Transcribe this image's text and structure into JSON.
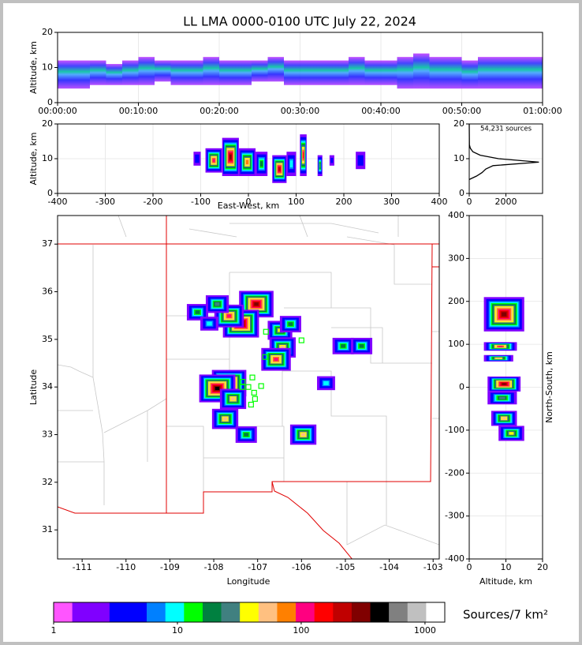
{
  "chart_data": [
    {
      "type": "time_height",
      "title": "LL LMA 0000-0100 UTC July 22, 2024",
      "ylabel": "Altitude, km",
      "xlim": [
        0,
        60
      ],
      "xticks": [
        {
          "value": 0,
          "label": "00:00:00"
        },
        {
          "value": 10,
          "label": "00:10:00"
        },
        {
          "value": 20,
          "label": "00:20:00"
        },
        {
          "value": 30,
          "label": "00:30:00"
        },
        {
          "value": 40,
          "label": "00:40:00"
        },
        {
          "value": 50,
          "label": "00:50:00"
        },
        {
          "value": 60,
          "label": "01:00:00"
        }
      ],
      "ylim": [
        0,
        20
      ],
      "yticks": [
        0,
        10,
        20
      ],
      "grid": true,
      "x": [
        0,
        2,
        4,
        6,
        8,
        10,
        12,
        14,
        16,
        18,
        20,
        22,
        24,
        26,
        28,
        30,
        32,
        34,
        36,
        38,
        40,
        42,
        44,
        46,
        48,
        50,
        52,
        54,
        56,
        58,
        60
      ],
      "low": [
        4,
        4,
        5,
        5,
        5,
        5,
        6,
        5,
        5,
        5,
        5,
        5,
        6,
        6,
        5,
        5,
        5,
        5,
        5,
        5,
        5,
        4,
        4,
        4,
        4,
        4,
        4,
        4,
        4,
        4,
        4
      ],
      "high": [
        12,
        12,
        12,
        11,
        12,
        13,
        12,
        12,
        12,
        13,
        12,
        12,
        12,
        13,
        12,
        12,
        12,
        12,
        13,
        12,
        12,
        13,
        14,
        13,
        13,
        12,
        13,
        13,
        13,
        13,
        13
      ]
    },
    {
      "type": "ew_altitude",
      "xlabel": "East-West, km",
      "ylabel": "Altitude, km",
      "xlim": [
        -400,
        400
      ],
      "xticks": [
        -400,
        -300,
        -200,
        -100,
        0,
        100,
        200,
        300,
        400
      ],
      "ylim": [
        0,
        20
      ],
      "yticks": [
        0,
        10,
        20
      ],
      "grid": true,
      "x_low": [
        -115,
        -90,
        -55,
        -20,
        15,
        50,
        80,
        108,
        145,
        170,
        225
      ],
      "x_high": [
        -100,
        -55,
        -20,
        15,
        40,
        80,
        100,
        122,
        155,
        180,
        245
      ],
      "low": [
        8,
        6,
        5,
        5,
        5,
        3,
        5,
        5,
        5,
        8,
        7
      ],
      "high": [
        12,
        13,
        16,
        13,
        12,
        11,
        12,
        17,
        11,
        11,
        12
      ],
      "count": [
        5,
        100,
        300,
        80,
        20,
        200,
        10,
        150,
        30,
        3,
        5
      ]
    },
    {
      "type": "line",
      "annotation": "54,231 sources",
      "xlim": [
        0,
        4000
      ],
      "xticks": [
        0,
        2000
      ],
      "ylim": [
        0,
        20
      ],
      "yticks": [
        0,
        10,
        20
      ],
      "grid": true,
      "color": "#000000",
      "x": [
        0,
        400,
        700,
        900,
        1300,
        3800,
        1600,
        600,
        200,
        60,
        10,
        0
      ],
      "y": [
        4,
        5,
        6,
        7,
        8,
        9,
        10,
        11,
        12,
        13,
        14,
        20
      ]
    },
    {
      "type": "map",
      "xlabel": "Longitude",
      "ylabel": "Latitude",
      "xlim": [
        -111.56,
        -102.86
      ],
      "xticks": [
        -111,
        -110,
        -109,
        -108,
        -107,
        -106,
        -105,
        -104,
        -103
      ],
      "ylim": [
        30.39,
        37.6
      ],
      "yticks": [
        31,
        32,
        33,
        34,
        35,
        36,
        37
      ],
      "lon": [
        -107.03,
        -107.38,
        -107.65,
        -107.92,
        -108.37,
        -106.49,
        -106.25,
        -106.43,
        -106.58,
        -107.65,
        -107.92,
        -107.56,
        -107.74,
        -107.26,
        -105.96,
        -105.05,
        -104.63,
        -105.44,
        -108.1
      ],
      "lat": [
        35.74,
        35.33,
        35.49,
        35.74,
        35.57,
        35.19,
        35.32,
        34.83,
        34.58,
        34.08,
        33.97,
        33.75,
        33.33,
        33.0,
        33.0,
        34.86,
        34.86,
        34.08,
        35.33
      ],
      "count": [
        300,
        500,
        100,
        30,
        20,
        40,
        20,
        50,
        100,
        300,
        400,
        50,
        60,
        20,
        50,
        20,
        20,
        10,
        10
      ],
      "stations": {
        "color": "#00ff00",
        "lon": [
          -107.35,
          -107.21,
          -107.12,
          -107.34,
          -107.08,
          -107.06,
          -107.15,
          -106.92,
          -106.83,
          -106.81,
          -106.0
        ],
        "lat": [
          34.0,
          34.0,
          34.2,
          34.11,
          33.88,
          33.75,
          33.63,
          34.02,
          34.63,
          35.16,
          34.98
        ]
      }
    },
    {
      "type": "ns_altitude",
      "xlabel": "Altitude, km",
      "ylabel": "North-South, km",
      "xlim": [
        0,
        20
      ],
      "xticks": [
        0,
        10,
        20
      ],
      "ylim": [
        -400,
        400
      ],
      "yticks": [
        -400,
        -300,
        -200,
        -100,
        0,
        100,
        200,
        300,
        400
      ],
      "grid": true,
      "y_low": [
        130,
        85,
        60,
        -10,
        -40,
        -90,
        -125
      ],
      "y_high": [
        210,
        105,
        75,
        25,
        -10,
        -55,
        -90
      ],
      "low": [
        4,
        4,
        4,
        5,
        5,
        6,
        8
      ],
      "high": [
        15,
        13,
        12,
        14,
        13,
        13,
        15
      ],
      "count": [
        300,
        100,
        50,
        300,
        30,
        60,
        40
      ]
    },
    {
      "type": "colorbar",
      "label": "Sources/7 km²",
      "log": true,
      "xlim": [
        1,
        1445
      ],
      "xticks": [
        1,
        10,
        100,
        1000
      ],
      "colors": [
        "#ff55ff",
        "#8000ff",
        "#8000ff",
        "#0000ff",
        "#0000ff",
        "#0080ff",
        "#00ffff",
        "#00ff00",
        "#008040",
        "#408080",
        "#ffff00",
        "#ffc080",
        "#ff8000",
        "#ff0080",
        "#ff0000",
        "#c00000",
        "#800000",
        "#000000",
        "#808080",
        "#c0c0c0",
        "#ffffff"
      ]
    }
  ]
}
